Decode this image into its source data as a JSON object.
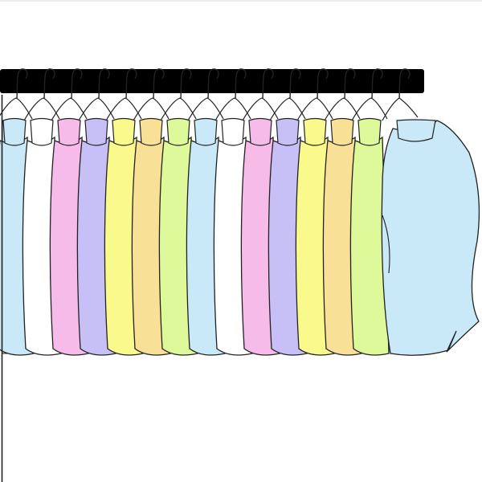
{
  "scene": {
    "background": "#ffffff",
    "rod_color": "#000000",
    "outline_color": "#222222",
    "hanger_color": "#ffffff"
  },
  "shirts": [
    {
      "color": "#c9e8f8"
    },
    {
      "color": "#ffffff"
    },
    {
      "color": "#f6bbe9"
    },
    {
      "color": "#c7c0f7"
    },
    {
      "color": "#fafa8c"
    },
    {
      "color": "#f8e097"
    },
    {
      "color": "#def99a"
    },
    {
      "color": "#c9e8f8"
    },
    {
      "color": "#ffffff"
    },
    {
      "color": "#f6bbe9"
    },
    {
      "color": "#c7c0f7"
    },
    {
      "color": "#fafa8c"
    },
    {
      "color": "#f8e097"
    },
    {
      "color": "#def99a"
    },
    {
      "color": "#c9e8f8"
    }
  ]
}
